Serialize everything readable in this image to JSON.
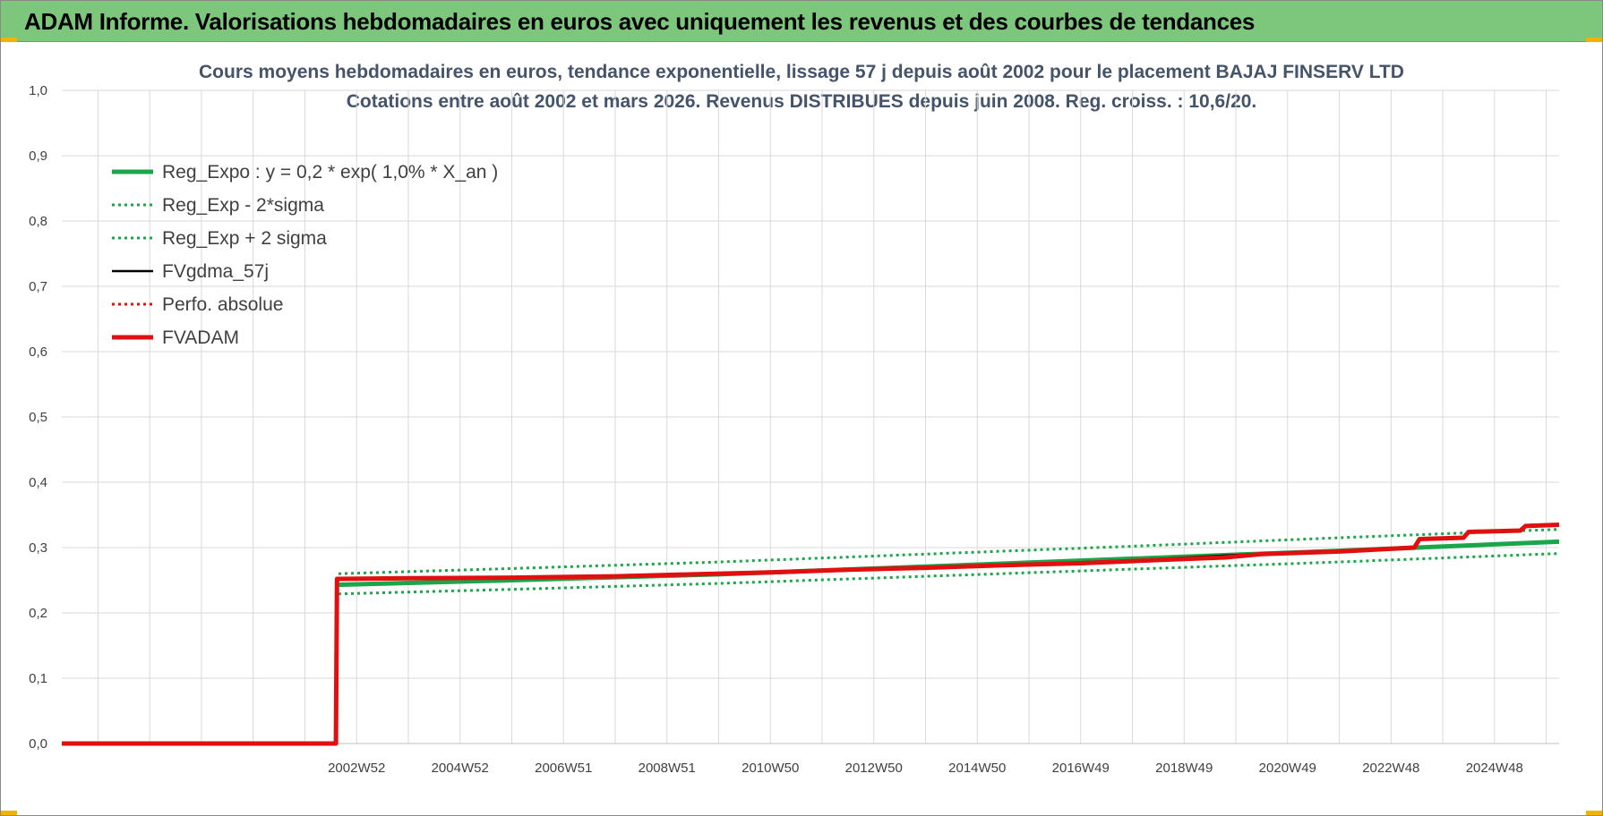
{
  "header": {
    "title": "ADAM Informe. Valorisations hebdomadaires en euros avec uniquement les revenus et des courbes de tendances"
  },
  "colors": {
    "banner": "#7dc77d",
    "reg_expo": "#1aa64a",
    "fvgdma": "#000000",
    "perfo": "#e01010",
    "fvadam": "#e01010",
    "grid": "#d9d9d9"
  },
  "chart_data": {
    "type": "line",
    "title_line1": "Cours moyens hebdomadaires en euros, tendance exponentielle, lissage 57 j depuis août 2002 pour le placement BAJAJ FINSERV LTD",
    "title_line2": "Cotations entre août 2002 et mars 2026.  Revenus DISTRIBUES depuis juin 2008.  Reg. croiss. : 10,6/20.",
    "ylim": [
      0,
      1
    ],
    "yticks": [
      "0,0",
      "0,1",
      "0,2",
      "0,3",
      "0,4",
      "0,5",
      "0,6",
      "0,7",
      "0,8",
      "0,9",
      "1,0"
    ],
    "xlim": [
      1997.3,
      2026.25
    ],
    "xticks": [
      {
        "label": "2002W52",
        "x": 2003.0
      },
      {
        "label": "2004W52",
        "x": 2005.0
      },
      {
        "label": "2006W51",
        "x": 2007.0
      },
      {
        "label": "2008W51",
        "x": 2009.0
      },
      {
        "label": "2010W50",
        "x": 2011.0
      },
      {
        "label": "2012W50",
        "x": 2013.0
      },
      {
        "label": "2014W50",
        "x": 2015.0
      },
      {
        "label": "2016W49",
        "x": 2017.0
      },
      {
        "label": "2018W49",
        "x": 2019.0
      },
      {
        "label": "2020W49",
        "x": 2021.0
      },
      {
        "label": "2022W48",
        "x": 2023.0
      },
      {
        "label": "2024W48",
        "x": 2025.0
      }
    ],
    "grid": true,
    "legend_position": "top-left",
    "series": [
      {
        "name": "Reg_Expo : y = 0,2 * exp( 1,0% *  X_an )",
        "style": "solid-thick",
        "color": "#1aa64a",
        "points": [
          [
            2002.65,
            0.243
          ],
          [
            2006,
            0.25
          ],
          [
            2010,
            0.259
          ],
          [
            2014,
            0.271
          ],
          [
            2018,
            0.283
          ],
          [
            2022,
            0.295
          ],
          [
            2026.25,
            0.309
          ]
        ]
      },
      {
        "name": "Reg_Exp - 2*sigma",
        "style": "dotted",
        "color": "#1aa64a",
        "points": [
          [
            2002.65,
            0.229
          ],
          [
            2006,
            0.236
          ],
          [
            2010,
            0.245
          ],
          [
            2014,
            0.256
          ],
          [
            2018,
            0.267
          ],
          [
            2022,
            0.278
          ],
          [
            2026.25,
            0.291
          ]
        ]
      },
      {
        "name": "Reg_Exp + 2 sigma",
        "style": "dotted",
        "color": "#1aa64a",
        "points": [
          [
            2002.65,
            0.26
          ],
          [
            2006,
            0.268
          ],
          [
            2010,
            0.278
          ],
          [
            2014,
            0.29
          ],
          [
            2018,
            0.302
          ],
          [
            2022,
            0.315
          ],
          [
            2026.25,
            0.328
          ]
        ]
      },
      {
        "name": "FVgdma_57j",
        "style": "solid",
        "color": "#000000",
        "points": [
          [
            1997.3,
            0.0
          ],
          [
            2002.6,
            0.0
          ],
          [
            2002.62,
            0.253
          ],
          [
            2006,
            0.254
          ],
          [
            2009,
            0.258
          ],
          [
            2012,
            0.266
          ],
          [
            2015,
            0.272
          ],
          [
            2018,
            0.281
          ],
          [
            2020.5,
            0.291
          ],
          [
            2022,
            0.295
          ],
          [
            2023.45,
            0.301
          ],
          [
            2023.55,
            0.314
          ],
          [
            2024.4,
            0.316
          ],
          [
            2024.5,
            0.325
          ],
          [
            2025.5,
            0.327
          ],
          [
            2025.6,
            0.334
          ],
          [
            2026.25,
            0.336
          ]
        ]
      },
      {
        "name": "Perfo. absolue",
        "style": "dotted",
        "color": "#e01010",
        "points": [
          [
            1997.3,
            0.0
          ],
          [
            2002.6,
            0.0
          ],
          [
            2002.62,
            0.252
          ],
          [
            2006,
            0.253
          ],
          [
            2009,
            0.257
          ],
          [
            2012,
            0.265
          ],
          [
            2015,
            0.271
          ],
          [
            2018,
            0.28
          ],
          [
            2020.5,
            0.29
          ],
          [
            2022,
            0.294
          ],
          [
            2023.45,
            0.3
          ],
          [
            2023.55,
            0.313
          ],
          [
            2024.4,
            0.315
          ],
          [
            2024.5,
            0.324
          ],
          [
            2025.5,
            0.326
          ],
          [
            2025.6,
            0.333
          ],
          [
            2026.25,
            0.335
          ]
        ]
      },
      {
        "name": "FVADAM",
        "style": "solid-thick",
        "color": "#e01010",
        "points": [
          [
            1997.3,
            0.0
          ],
          [
            2002.6,
            0.0
          ],
          [
            2002.62,
            0.252
          ],
          [
            2004,
            0.253
          ],
          [
            2006,
            0.254
          ],
          [
            2008,
            0.256
          ],
          [
            2009.5,
            0.259
          ],
          [
            2011,
            0.262
          ],
          [
            2012.5,
            0.266
          ],
          [
            2014,
            0.269
          ],
          [
            2015.5,
            0.273
          ],
          [
            2017,
            0.276
          ],
          [
            2018.5,
            0.281
          ],
          [
            2019.8,
            0.285
          ],
          [
            2020.5,
            0.29
          ],
          [
            2022,
            0.294
          ],
          [
            2023.45,
            0.3
          ],
          [
            2023.55,
            0.313
          ],
          [
            2024.4,
            0.315
          ],
          [
            2024.5,
            0.324
          ],
          [
            2025.5,
            0.326
          ],
          [
            2025.6,
            0.333
          ],
          [
            2026.25,
            0.335
          ]
        ]
      }
    ]
  }
}
